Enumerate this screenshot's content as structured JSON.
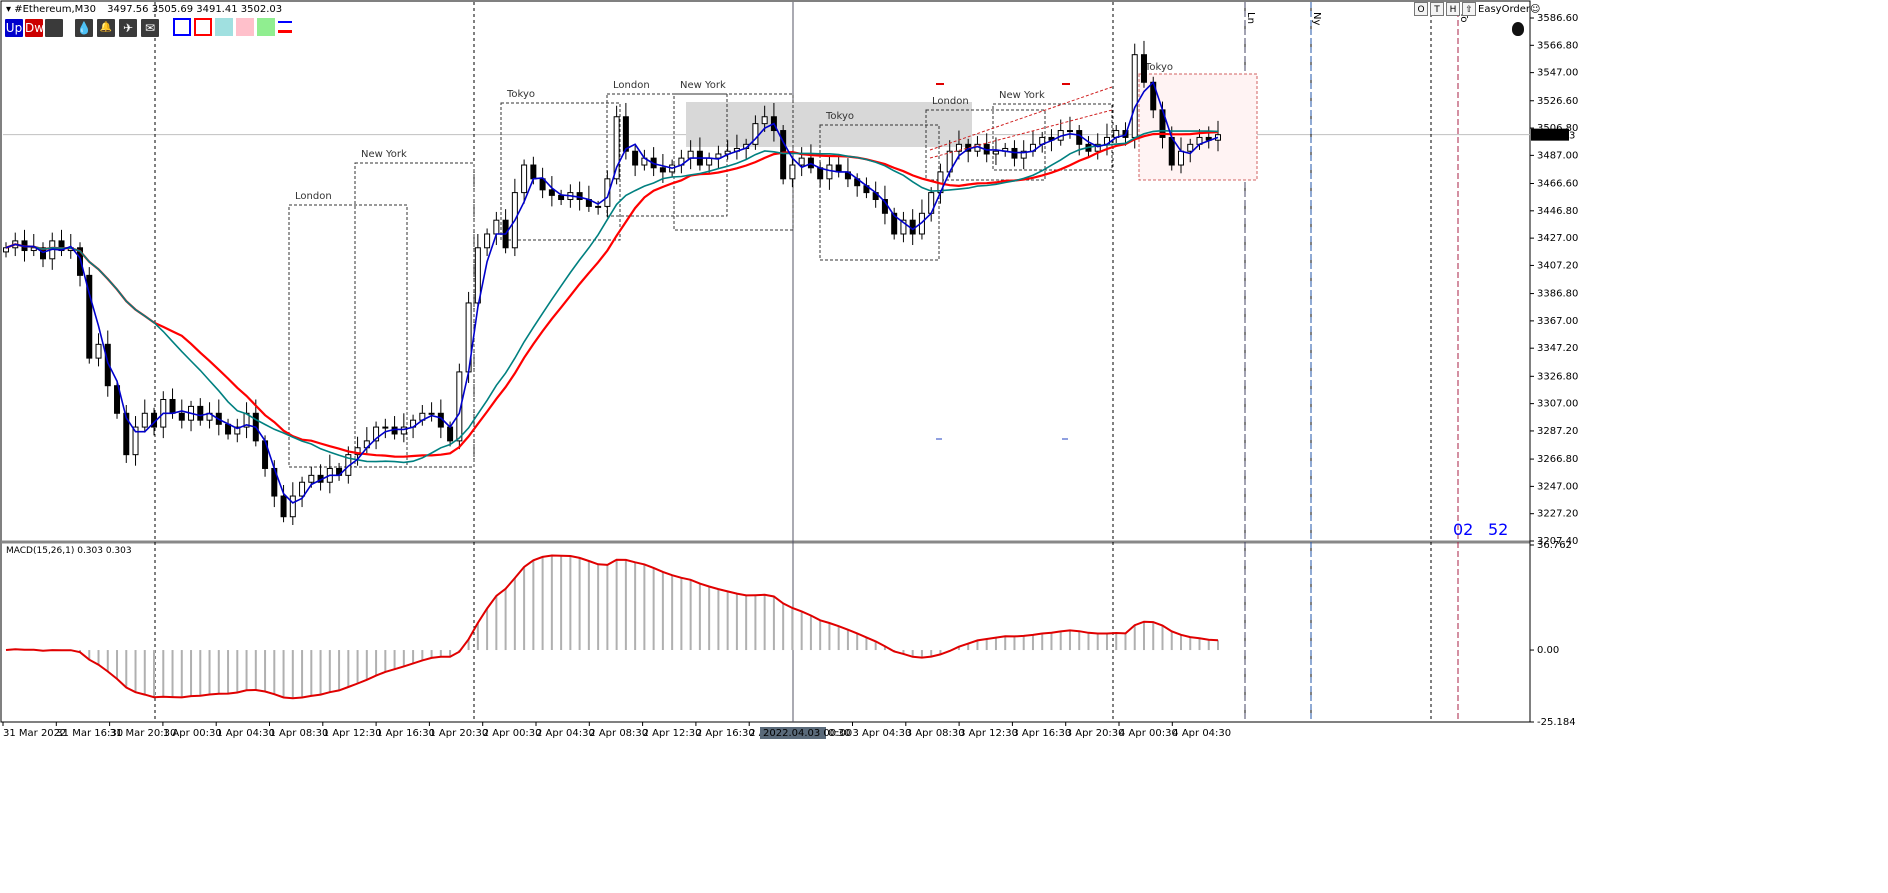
{
  "header": {
    "symbol": "#Ethereum,M30",
    "ohlc": "3497.56 3505.69 3491.41 3502.03"
  },
  "toolbar": {
    "up_label": "Up",
    "down_label": "Dw",
    "icons": [
      "drop-icon",
      "bell-icon",
      "plane-icon",
      "envelope-icon"
    ],
    "colors": {
      "blue_square": "#0000ff",
      "red_square": "#ff0000",
      "cyan": "#a0e0e0",
      "pink": "#ffc0cb",
      "green": "#90ee90"
    }
  },
  "topright": {
    "buttons": [
      "O",
      "T",
      "H",
      "⇧"
    ],
    "expert": "EasyOrder☺"
  },
  "price_axis": {
    "ticks": [
      "3586.60",
      "3566.80",
      "3547.00",
      "3526.60",
      "3506.80",
      "3487.00",
      "3466.60",
      "3446.80",
      "3427.00",
      "3407.20",
      "3386.80",
      "3367.00",
      "3347.20",
      "3326.80",
      "3307.00",
      "3287.20",
      "3266.80",
      "3247.00",
      "3227.20",
      "3207.40"
    ],
    "current": "3502.03"
  },
  "macd_axis": {
    "ticks": [
      "36.762",
      "0.00",
      "-25.184"
    ]
  },
  "macd_label": "MACD(15,26,1) 0.303 0.303",
  "time_axis": {
    "labels": [
      "31 Mar 2022",
      "31 Mar 16:30",
      "31 Mar 20:30",
      "1 Apr 00:30",
      "1 Apr 04:30",
      "1 Apr 08:30",
      "1 Apr 12:30",
      "1 Apr 16:30",
      "1 Apr 20:30",
      "2 Apr 00:30",
      "2 Apr 04:30",
      "2 Apr 08:30",
      "2 Apr 12:30",
      "2 Apr 16:30",
      "2 A",
      "3 Apr 04:30",
      "3 Apr 08:30",
      "3 Apr 12:30",
      "3 Apr 16:30",
      "3 Apr 20:30",
      "4 Apr 00:30",
      "4 Apr 04:30"
    ],
    "crosshair": "2022.04.03 00:00",
    "crosshair_tail": "0:30"
  },
  "sessions": [
    "London",
    "New York",
    "Tokyo",
    "London",
    "New York",
    "Tokyo",
    "London",
    "New York",
    "Tokyo"
  ],
  "vertical_markers": [
    "Ln",
    "Ny",
    "To"
  ],
  "countdown": {
    "minutes": "02",
    "seconds": "52"
  },
  "chart_data": {
    "type": "candlestick",
    "symbol": "#Ethereum",
    "timeframe": "M30",
    "ylim": [
      3207.4,
      3586.6
    ],
    "close_path": [
      3420,
      3425,
      3418,
      3420,
      3412,
      3425,
      3418,
      3420,
      3400,
      3340,
      3350,
      3320,
      3300,
      3270,
      3290,
      3300,
      3290,
      3310,
      3300,
      3295,
      3305,
      3295,
      3300,
      3292,
      3285,
      3290,
      3300,
      3280,
      3260,
      3240,
      3225,
      3240,
      3250,
      3255,
      3250,
      3260,
      3255,
      3270,
      3275,
      3280,
      3290,
      3290,
      3285,
      3290,
      3295,
      3300,
      3300,
      3290,
      3280,
      3330,
      3380,
      3420,
      3430,
      3440,
      3420,
      3460,
      3480,
      3470,
      3462,
      3458,
      3455,
      3460,
      3455,
      3450,
      3450,
      3470,
      3515,
      3490,
      3480,
      3485,
      3478,
      3475,
      3480,
      3485,
      3490,
      3480,
      3485,
      3488,
      3490,
      3492,
      3495,
      3510,
      3515,
      3505,
      3470,
      3480,
      3485,
      3478,
      3470,
      3480,
      3475,
      3470,
      3465,
      3460,
      3455,
      3445,
      3430,
      3440,
      3430,
      3445,
      3460,
      3475,
      3490,
      3495,
      3490,
      3495,
      3488,
      3490,
      3492,
      3485,
      3490,
      3495,
      3500,
      3498,
      3505,
      3505,
      3495,
      3490,
      3495,
      3500,
      3505,
      3500,
      3560,
      3540,
      3520,
      3500,
      3480,
      3490,
      3495,
      3500,
      3498,
      3502
    ],
    "series": [
      {
        "name": "MA fast",
        "color": "#0000cc"
      },
      {
        "name": "MA mid",
        "color": "#008080"
      },
      {
        "name": "MA slow",
        "color": "#ff0000"
      }
    ],
    "macd": {
      "name": "MACD(15,26,1)",
      "value": 0.303,
      "ylim": [
        -25.184,
        36.762
      ]
    }
  }
}
